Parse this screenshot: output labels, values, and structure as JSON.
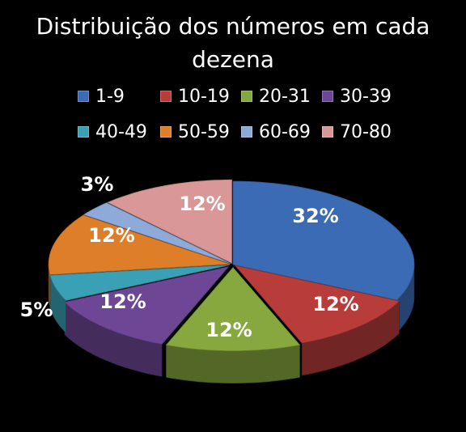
{
  "chart_data": {
    "type": "pie",
    "title": "Distribuição dos números em cada dezena",
    "categories": [
      "1-9",
      "10-19",
      "20-31",
      "30-39",
      "40-49",
      "50-59",
      "60-69",
      "70-80"
    ],
    "values": [
      32,
      12,
      12,
      12,
      5,
      12,
      3,
      12
    ],
    "data_labels": [
      "32%",
      "12%",
      "12%",
      "12%",
      "5%",
      "12%",
      "3%",
      "12%"
    ],
    "colors": [
      "#3b6bb4",
      "#b73c3a",
      "#86a83f",
      "#6d4796",
      "#3aa0b5",
      "#de7e29",
      "#8eaad8",
      "#d99897"
    ],
    "legend_position": "top",
    "style": "3d-exploded-pie"
  }
}
